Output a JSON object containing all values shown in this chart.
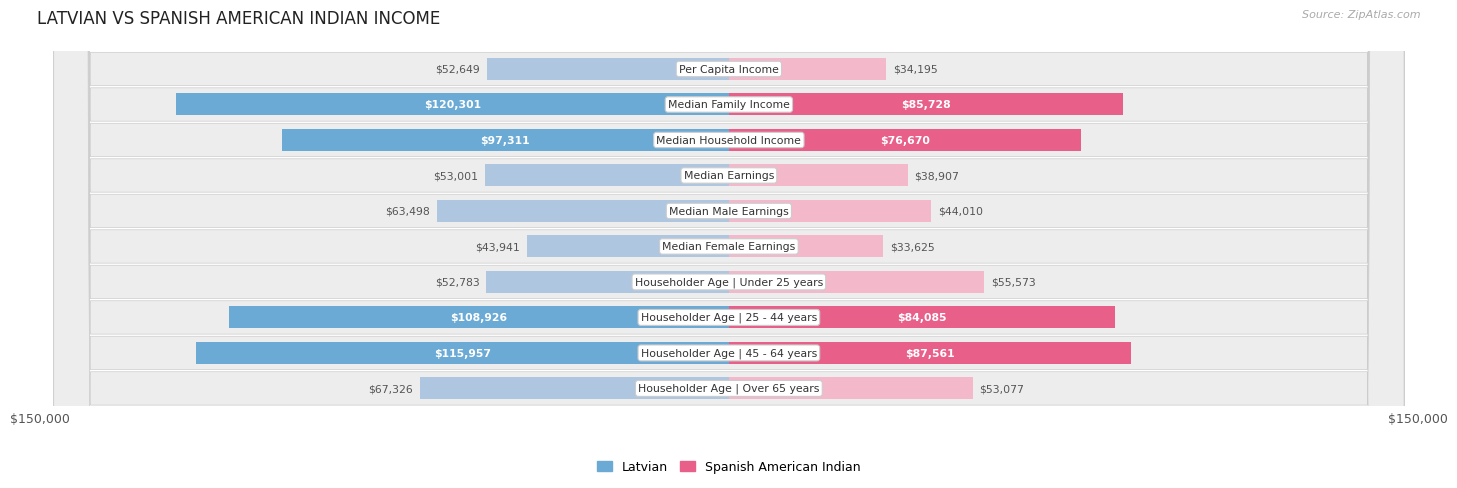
{
  "title": "LATVIAN VS SPANISH AMERICAN INDIAN INCOME",
  "source": "Source: ZipAtlas.com",
  "max_val": 150000,
  "categories": [
    "Per Capita Income",
    "Median Family Income",
    "Median Household Income",
    "Median Earnings",
    "Median Male Earnings",
    "Median Female Earnings",
    "Householder Age | Under 25 years",
    "Householder Age | 25 - 44 years",
    "Householder Age | 45 - 64 years",
    "Householder Age | Over 65 years"
  ],
  "latvian_values": [
    52649,
    120301,
    97311,
    53001,
    63498,
    43941,
    52783,
    108926,
    115957,
    67326
  ],
  "spanish_values": [
    34195,
    85728,
    76670,
    38907,
    44010,
    33625,
    55573,
    84085,
    87561,
    53077
  ],
  "latvian_color_light": "#aec6e0",
  "latvian_color_dark": "#6aaad4",
  "spanish_color_light": "#f4b8cb",
  "spanish_color_dark": "#e8608a",
  "inside_label_threshold": 75000,
  "bg_color": "#ffffff",
  "row_bg_color": "#ededee",
  "legend_latvian_label": "Latvian",
  "legend_spanish_label": "Spanish American Indian"
}
